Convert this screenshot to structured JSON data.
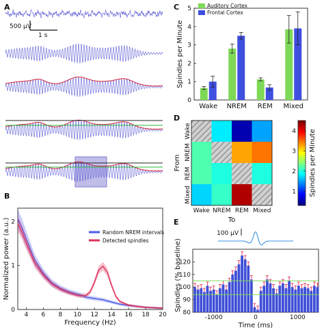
{
  "panels": {
    "A": "A",
    "B": "B",
    "C": "C",
    "D": "D",
    "E": "E"
  },
  "panel_a": {
    "scale_voltage": "500 µV",
    "scale_time": "1 s"
  },
  "colors": {
    "trace": "#5b5bd6",
    "envelope": "#d1213a",
    "threshold_high": "#222222",
    "threshold_low": "#25b83a",
    "auditory": "#7ed957",
    "frontal": "#3f4fe0",
    "random_nrem": "#4a5ae8",
    "detected": "#e0305a",
    "spindle_box": "#8c86d6",
    "bars_e": "#3f4fd6",
    "err_e": "#e0305a",
    "avg_wave": "#3a8fe0"
  },
  "chart_data": [
    {
      "id": "B",
      "type": "line",
      "xlabel": "Frequency (Hz)",
      "ylabel": "Normalized power (a.u.)",
      "xlim": [
        3,
        20
      ],
      "ylim": [
        0,
        2.3
      ],
      "xticks": [
        4,
        6,
        8,
        10,
        12,
        14,
        16,
        18,
        20
      ],
      "yticks": [
        0,
        1,
        2
      ],
      "legend": "right",
      "series": [
        {
          "name": "Random NREM intervals",
          "color": "#4a5ae8",
          "x": [
            3,
            3.5,
            4,
            5,
            6,
            7,
            8,
            9,
            10,
            10.5,
            11,
            12,
            13,
            14,
            15,
            16,
            17,
            18,
            19,
            20
          ],
          "y": [
            2.05,
            1.85,
            1.6,
            1.12,
            0.82,
            0.6,
            0.48,
            0.4,
            0.35,
            0.32,
            0.28,
            0.25,
            0.22,
            0.17,
            0.12,
            0.09,
            0.07,
            0.05,
            0.04,
            0.03
          ]
        },
        {
          "name": "Detected spindles",
          "color": "#e0305a",
          "x": [
            3,
            3.5,
            4,
            5,
            6,
            7,
            8,
            9,
            10,
            10.5,
            11,
            11.5,
            12,
            12.5,
            13,
            13.5,
            14,
            14.5,
            15,
            16,
            17,
            18,
            19,
            20
          ],
          "y": [
            1.95,
            1.75,
            1.5,
            1.05,
            0.78,
            0.58,
            0.46,
            0.38,
            0.32,
            0.31,
            0.32,
            0.4,
            0.62,
            0.9,
            0.98,
            0.85,
            0.55,
            0.3,
            0.18,
            0.1,
            0.07,
            0.05,
            0.04,
            0.03
          ]
        }
      ]
    },
    {
      "id": "C",
      "type": "bar",
      "ylabel": "Spindles per Minute",
      "categories": [
        "Wake",
        "NREM",
        "REM",
        "Mixed"
      ],
      "ylim": [
        0,
        5
      ],
      "yticks": [
        0,
        1,
        2,
        3,
        4,
        5
      ],
      "legend": "top-left",
      "series": [
        {
          "name": "Auditory Cortex",
          "color": "#7ed957",
          "values": [
            0.65,
            2.8,
            1.12,
            3.85
          ],
          "errors": [
            0.08,
            0.25,
            0.08,
            0.75
          ]
        },
        {
          "name": "Frontal Cortex",
          "color": "#3f4fe0",
          "values": [
            1.0,
            3.5,
            0.68,
            3.9
          ],
          "errors": [
            0.3,
            0.18,
            0.15,
            0.9
          ]
        }
      ]
    },
    {
      "id": "D",
      "type": "heatmap",
      "xlabel": "To",
      "ylabel": "From",
      "categories": [
        "Wake",
        "NREM",
        "REM",
        "Mixed"
      ],
      "colorbar_label": "Spindles per Minute",
      "colorbar_ticks": [
        1,
        2,
        3,
        4
      ],
      "crange": [
        0.3,
        4.5
      ],
      "values": [
        [
          null,
          1.8,
          0.5,
          1.5
        ],
        [
          2.2,
          null,
          3.3,
          3.5
        ],
        [
          2.2,
          2.0,
          null,
          2.0
        ],
        [
          1.7,
          2.1,
          4.3,
          null
        ]
      ]
    },
    {
      "id": "E",
      "type": "bar",
      "xlabel": "Time (ms)",
      "ylabel": "Spindles (% baseline)",
      "xlim": [
        -1500,
        1500
      ],
      "ylim": [
        80,
        130
      ],
      "xticks": [
        -1000,
        0,
        1000
      ],
      "yticks": [
        80,
        90,
        100,
        110,
        120
      ],
      "inset_scale": "100 µV",
      "x": [
        -1450,
        -1375,
        -1300,
        -1225,
        -1150,
        -1075,
        -1000,
        -925,
        -850,
        -775,
        -700,
        -625,
        -550,
        -475,
        -400,
        -325,
        -250,
        -175,
        -100,
        -25,
        50,
        125,
        200,
        275,
        350,
        425,
        500,
        575,
        650,
        725,
        800,
        875,
        950,
        1025,
        1100,
        1175,
        1250,
        1325,
        1400,
        1475
      ],
      "values": [
        100,
        98,
        99,
        96,
        101,
        97,
        98,
        94,
        99,
        102,
        98,
        104,
        110,
        113,
        118,
        125,
        122,
        117,
        106,
        84,
        82,
        97,
        101,
        106,
        103,
        99,
        95,
        101,
        103,
        99,
        105,
        100,
        98,
        101,
        99,
        100,
        99,
        97,
        101,
        100
      ],
      "errors": [
        3,
        3,
        3,
        3,
        3,
        3,
        3,
        3,
        3,
        3,
        3,
        3,
        3,
        3,
        3,
        3,
        3,
        3,
        3,
        3,
        3,
        3,
        3,
        3,
        3,
        3,
        3,
        3,
        3,
        3,
        3,
        3,
        3,
        3,
        3,
        3,
        3,
        3,
        3,
        3
      ]
    }
  ]
}
